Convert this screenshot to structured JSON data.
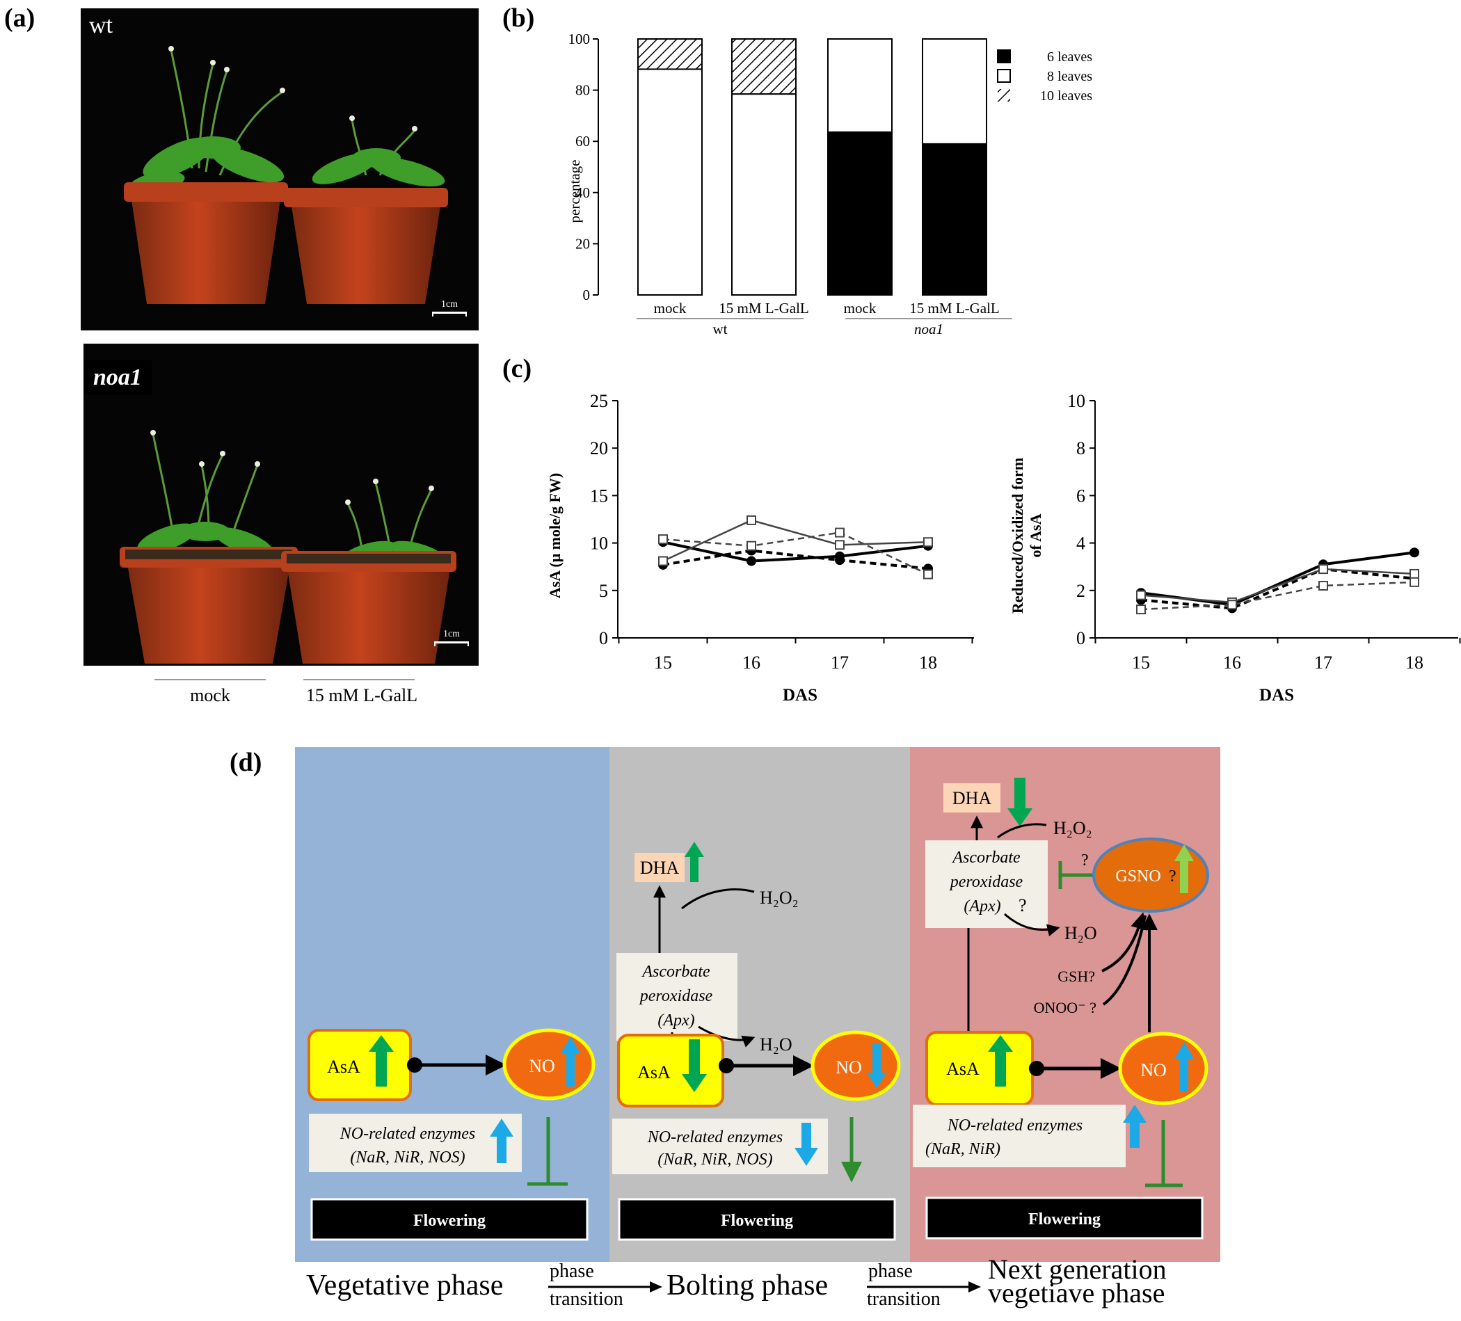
{
  "panels": {
    "a": "(a)",
    "b": "(b)",
    "c": "(c)",
    "d": "(d)"
  },
  "panel_a": {
    "photo_top_label": "wt",
    "photo_bottom_label": "noa1",
    "scale_label": "1cm",
    "under_left": "mock",
    "under_right": "15 mM L-GalL"
  },
  "chart_data": [
    {
      "type": "bar",
      "stacked": true,
      "title": "",
      "ylabel": "percentage",
      "ylim": [
        0,
        100
      ],
      "yticks": [
        0,
        20,
        40,
        60,
        80,
        100
      ],
      "categories": [
        "mock",
        "15 mM L-GalL",
        "mock",
        "15 mM L-GalL"
      ],
      "groups": [
        {
          "label": "wt",
          "italic": false
        },
        {
          "label": "noa1",
          "italic": true
        }
      ],
      "series": [
        {
          "name": "6 leaves",
          "fill": "#000000",
          "values": [
            0,
            0,
            63.6,
            59
          ]
        },
        {
          "name": "8 leaves",
          "fill": "#ffffff",
          "values": [
            88.2,
            78.5,
            36.4,
            41
          ]
        },
        {
          "name": "10 leaves",
          "fill": "hatch",
          "values": [
            11.8,
            21.5,
            0,
            0
          ]
        }
      ],
      "legend": "top-right"
    },
    {
      "type": "line",
      "xlabel": "DAS",
      "ylabel": "AsA (μ mole/g FW)",
      "x": [
        15,
        16,
        17,
        18
      ],
      "ylim": [
        0,
        25
      ],
      "yticks": [
        0,
        5,
        10,
        15,
        20,
        25
      ],
      "series": [
        {
          "name": "solid-circle",
          "marker": "filled-circle",
          "dash": false,
          "values": [
            10.1,
            8.1,
            8.6,
            9.7
          ]
        },
        {
          "name": "dashed-circle",
          "marker": "filled-circle",
          "dash": true,
          "values": [
            7.7,
            9.2,
            8.2,
            7.3
          ]
        },
        {
          "name": "solid-square",
          "marker": "open-square",
          "dash": false,
          "values": [
            8.1,
            12.4,
            9.8,
            10.1
          ]
        },
        {
          "name": "dashed-square",
          "marker": "open-square",
          "dash": true,
          "values": [
            10.4,
            9.7,
            11.1,
            6.7
          ]
        }
      ]
    },
    {
      "type": "line",
      "xlabel": "DAS",
      "ylabel": "Reduced/Oxidized form of AsA",
      "ylabel_lines": [
        "Reduced/Oxidized form",
        "of AsA"
      ],
      "x": [
        15,
        16,
        17,
        18
      ],
      "ylim": [
        0,
        10
      ],
      "yticks": [
        0,
        2,
        4,
        6,
        8,
        10
      ],
      "series": [
        {
          "name": "solid-circle",
          "marker": "filled-circle",
          "dash": false,
          "values": [
            1.9,
            1.4,
            3.1,
            3.6
          ]
        },
        {
          "name": "dashed-circle",
          "marker": "filled-circle",
          "dash": true,
          "values": [
            1.6,
            1.25,
            2.9,
            2.5
          ]
        },
        {
          "name": "solid-square",
          "marker": "open-square",
          "dash": false,
          "values": [
            1.8,
            1.5,
            2.9,
            2.7
          ]
        },
        {
          "name": "dashed-square",
          "marker": "open-square",
          "dash": true,
          "values": [
            1.2,
            1.4,
            2.2,
            2.35
          ]
        }
      ]
    }
  ],
  "diagram": {
    "col1": {
      "asa": "AsA",
      "no": "NO",
      "enzymes_title": "NO-related enzymes",
      "enzymes_list": "(NaR, NiR, NOS)",
      "flowering": "Flowering"
    },
    "col2": {
      "asa": "AsA",
      "no": "NO",
      "dha": "DHA",
      "apx_line1": "Ascorbate",
      "apx_line2": "peroxidase",
      "apx_line3": "(Apx)",
      "h2o2": "H₂O₂",
      "h2o": "H₂O",
      "enzymes_title": "NO-related enzymes",
      "enzymes_list": "(NaR, NiR, NOS)",
      "flowering": "Flowering"
    },
    "col3": {
      "asa": "AsA",
      "no": "NO",
      "dha": "DHA",
      "apx_line1": "Ascorbate",
      "apx_line2": "peroxidase",
      "apx_line3": "(Apx)",
      "apx_q": "?",
      "h2o2": "H₂O₂",
      "h2o": "H₂O",
      "gsno": "GSNO",
      "gsno_q": "?",
      "inhibit_q": "?",
      "gsh": "GSH?",
      "onoo": "ONOO⁻ ?",
      "enzymes_title": "NO-related enzymes",
      "enzymes_list": "(NaR, NiR)",
      "flowering": "Flowering"
    },
    "colors": {
      "col1_bg": "#95b3d7",
      "col2_bg": "#bfbfbf",
      "col3_bg": "#d99694",
      "asa_fill": "#ffff00",
      "asa_border": "#e46c0a",
      "no_fill": "#f26a10",
      "no_border": "#ffff00",
      "green_arrow": "#00a651",
      "blue_arrow": "#1ca9e6",
      "inhibit_green": "#2e8b2e"
    }
  },
  "phases": {
    "vegetative": "Vegetative phase",
    "transition1_top": "phase",
    "transition1_bottom": "transition",
    "bolting": "Bolting phase",
    "transition2_top": "phase",
    "transition2_bottom": "transition",
    "next_line1": "Next generation",
    "next_line2": "vegetiave phase"
  }
}
